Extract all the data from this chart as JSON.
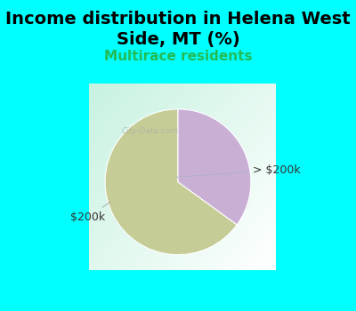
{
  "title": "Income distribution in Helena West\nSide, MT (%)",
  "subtitle": "Multirace residents",
  "slices": [
    {
      "label": "$200k",
      "value": 65,
      "color": "#c5cc96"
    },
    {
      "label": "> $200k",
      "value": 35,
      "color": "#c9afd4"
    }
  ],
  "title_fontsize": 14,
  "subtitle_fontsize": 11,
  "subtitle_color": "#22bb55",
  "title_color": "#000000",
  "bg_color": "#00ffff",
  "startangle": 90,
  "annotation_color": "#333333",
  "annotation_fontsize": 9
}
